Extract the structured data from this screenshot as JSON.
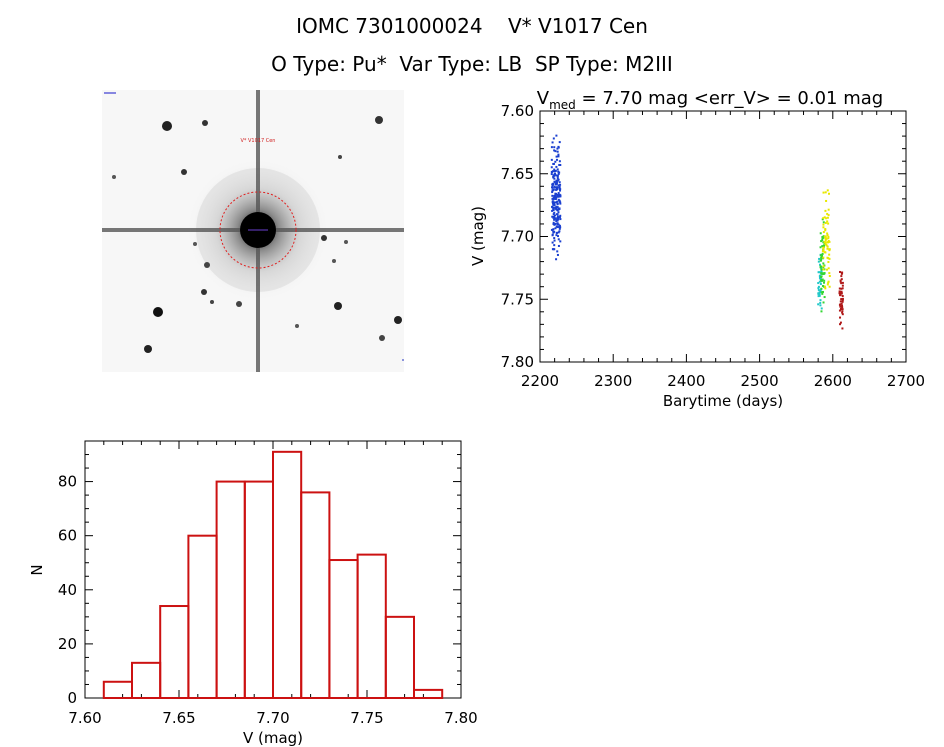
{
  "header": {
    "line1": "IOMC 7301000024    V* V1017 Cen",
    "line2": "O Type: Pu*  Var Type: LB  SP Type: M2III"
  },
  "image": {
    "object_label": "V* V1017 Cen"
  },
  "chart_data": [
    {
      "type": "scatter",
      "title": {
        "prefix": "V",
        "subscript": "med",
        "suffix": " = 7.70 mag <err_V> = 0.01 mag"
      },
      "xlabel": "Barytime (days)",
      "ylabel": "V (mag)",
      "xlim": [
        2200,
        2700
      ],
      "ylim": [
        7.8,
        7.6
      ],
      "y_inverted": true,
      "xticks": [
        2200,
        2300,
        2400,
        2500,
        2600,
        2700
      ],
      "yticks": [
        7.6,
        7.65,
        7.7,
        7.75,
        7.8
      ],
      "series": [
        {
          "color": "#1a3fd0",
          "x_range": [
            2216,
            2228
          ],
          "y_range": [
            7.61,
            7.73
          ],
          "y_center": 7.675,
          "approx_points": 220
        },
        {
          "color": "#20c8c8",
          "x_range": [
            2580,
            2585
          ],
          "y_range": [
            7.7,
            7.77
          ],
          "y_center": 7.74,
          "approx_points": 40
        },
        {
          "color": "#33d633",
          "x_range": [
            2583,
            2589
          ],
          "y_range": [
            7.68,
            7.77
          ],
          "y_center": 7.73,
          "approx_points": 60
        },
        {
          "color": "#e8e800",
          "x_range": [
            2586,
            2596
          ],
          "y_range": [
            7.65,
            7.76
          ],
          "y_center": 7.71,
          "approx_points": 70
        },
        {
          "color": "#b01818",
          "x_range": [
            2609,
            2614
          ],
          "y_range": [
            7.72,
            7.78
          ],
          "y_center": 7.75,
          "approx_points": 50
        }
      ]
    },
    {
      "type": "bar",
      "subtype": "histogram",
      "xlabel": "V (mag)",
      "ylabel": "N",
      "xlim": [
        7.6,
        7.8
      ],
      "ylim": [
        0,
        95
      ],
      "xticks": [
        7.6,
        7.65,
        7.7,
        7.75,
        7.8
      ],
      "yticks": [
        0,
        20,
        40,
        60,
        80
      ],
      "bin_width": 0.015,
      "bin_starts": [
        7.61,
        7.625,
        7.64,
        7.655,
        7.67,
        7.685,
        7.7,
        7.715,
        7.73,
        7.745,
        7.76,
        7.775
      ],
      "values": [
        6,
        13,
        34,
        60,
        80,
        80,
        91,
        76,
        51,
        53,
        30,
        3
      ],
      "bar_color": "#cc1111"
    }
  ]
}
